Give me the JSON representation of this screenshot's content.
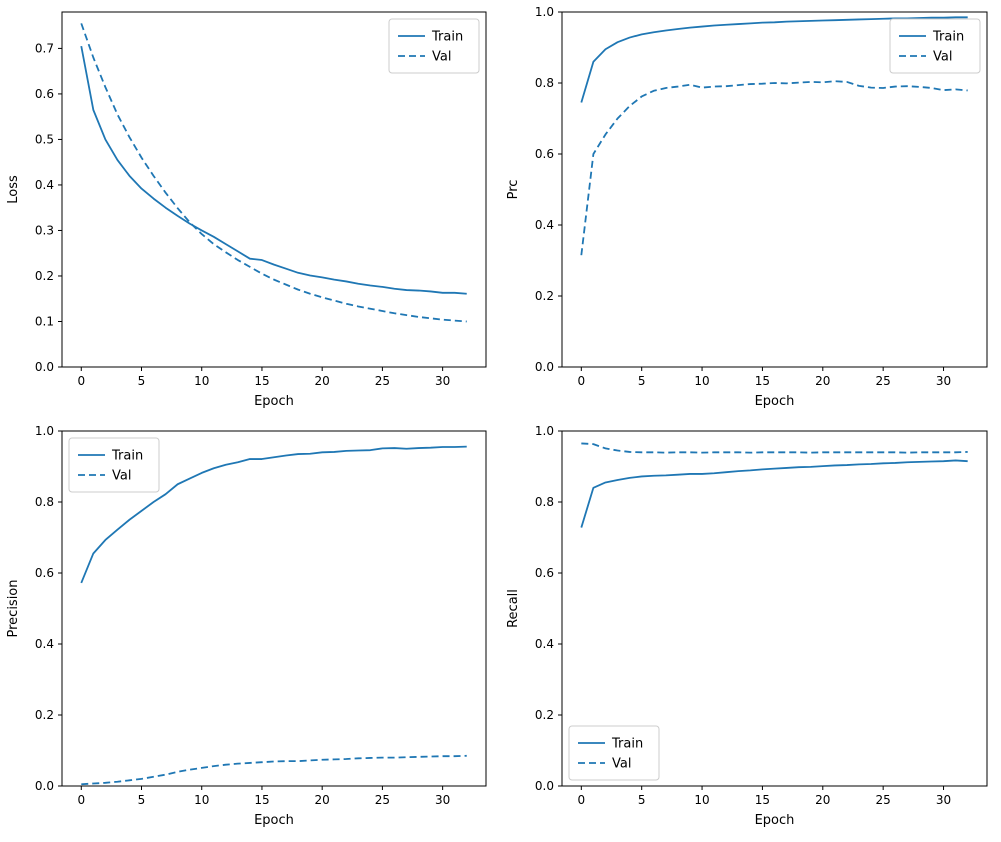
{
  "figure": {
    "background": "#ffffff",
    "line_color": "#1f77b4",
    "spine_color": "#000000",
    "legend_border_color": "#cccccc",
    "legend_labels": [
      "Train",
      "Val"
    ]
  },
  "epochs": [
    0,
    1,
    2,
    3,
    4,
    5,
    6,
    7,
    8,
    9,
    10,
    11,
    12,
    13,
    14,
    15,
    16,
    17,
    18,
    19,
    20,
    21,
    22,
    23,
    24,
    25,
    26,
    27,
    28,
    29,
    30,
    31,
    32
  ],
  "chart_data": [
    {
      "type": "line",
      "title": "",
      "xlabel": "Epoch",
      "ylabel": "Loss",
      "xlim": [
        -1.6,
        33.6
      ],
      "ylim": [
        0.0,
        0.78
      ],
      "xticks": [
        0,
        5,
        10,
        15,
        20,
        25,
        30
      ],
      "yticks": [
        0.0,
        0.1,
        0.2,
        0.3,
        0.4,
        0.5,
        0.6,
        0.7
      ],
      "grid": false,
      "legend_position": "top-right",
      "series": [
        {
          "name": "Train",
          "style": "solid",
          "values": [
            0.705,
            0.565,
            0.5,
            0.455,
            0.42,
            0.392,
            0.37,
            0.35,
            0.332,
            0.315,
            0.3,
            0.286,
            0.27,
            0.254,
            0.238,
            0.235,
            0.225,
            0.216,
            0.207,
            0.201,
            0.197,
            0.192,
            0.188,
            0.183,
            0.179,
            0.176,
            0.172,
            0.169,
            0.168,
            0.166,
            0.163,
            0.163,
            0.161
          ]
        },
        {
          "name": "Val",
          "style": "dashed",
          "values": [
            0.755,
            0.68,
            0.615,
            0.555,
            0.505,
            0.46,
            0.42,
            0.383,
            0.349,
            0.318,
            0.292,
            0.27,
            0.252,
            0.235,
            0.22,
            0.205,
            0.192,
            0.181,
            0.17,
            0.161,
            0.153,
            0.146,
            0.139,
            0.133,
            0.128,
            0.123,
            0.118,
            0.114,
            0.11,
            0.107,
            0.104,
            0.102,
            0.1
          ]
        }
      ]
    },
    {
      "type": "line",
      "title": "",
      "xlabel": "Epoch",
      "ylabel": "Prc",
      "xlim": [
        -1.6,
        33.6
      ],
      "ylim": [
        0.0,
        1.0
      ],
      "xticks": [
        0,
        5,
        10,
        15,
        20,
        25,
        30
      ],
      "yticks": [
        0.0,
        0.2,
        0.4,
        0.6,
        0.8,
        1.0
      ],
      "grid": false,
      "legend_position": "top-right",
      "series": [
        {
          "name": "Train",
          "style": "solid",
          "values": [
            0.745,
            0.86,
            0.895,
            0.915,
            0.928,
            0.937,
            0.943,
            0.948,
            0.952,
            0.956,
            0.959,
            0.962,
            0.964,
            0.966,
            0.968,
            0.97,
            0.971,
            0.973,
            0.974,
            0.975,
            0.976,
            0.977,
            0.978,
            0.979,
            0.98,
            0.981,
            0.982,
            0.982,
            0.983,
            0.984,
            0.984,
            0.985,
            0.985
          ]
        },
        {
          "name": "Val",
          "style": "dashed",
          "values": [
            0.315,
            0.6,
            0.655,
            0.7,
            0.735,
            0.762,
            0.778,
            0.786,
            0.79,
            0.795,
            0.787,
            0.79,
            0.791,
            0.794,
            0.797,
            0.798,
            0.8,
            0.799,
            0.801,
            0.803,
            0.802,
            0.805,
            0.803,
            0.792,
            0.787,
            0.786,
            0.79,
            0.791,
            0.789,
            0.786,
            0.78,
            0.782,
            0.779
          ]
        }
      ]
    },
    {
      "type": "line",
      "title": "",
      "xlabel": "Epoch",
      "ylabel": "Precision",
      "xlim": [
        -1.6,
        33.6
      ],
      "ylim": [
        0.0,
        1.0
      ],
      "xticks": [
        0,
        5,
        10,
        15,
        20,
        25,
        30
      ],
      "yticks": [
        0.0,
        0.2,
        0.4,
        0.6,
        0.8,
        1.0
      ],
      "grid": false,
      "legend_position": "top-left",
      "series": [
        {
          "name": "Train",
          "style": "solid",
          "values": [
            0.572,
            0.655,
            0.693,
            0.722,
            0.75,
            0.775,
            0.8,
            0.822,
            0.85,
            0.866,
            0.882,
            0.895,
            0.905,
            0.912,
            0.921,
            0.921,
            0.926,
            0.931,
            0.935,
            0.936,
            0.94,
            0.941,
            0.944,
            0.945,
            0.946,
            0.951,
            0.952,
            0.95,
            0.952,
            0.953,
            0.955,
            0.955,
            0.956
          ]
        },
        {
          "name": "Val",
          "style": "dashed",
          "values": [
            0.005,
            0.007,
            0.009,
            0.012,
            0.016,
            0.02,
            0.026,
            0.032,
            0.04,
            0.046,
            0.051,
            0.056,
            0.06,
            0.063,
            0.065,
            0.067,
            0.069,
            0.07,
            0.07,
            0.072,
            0.074,
            0.075,
            0.076,
            0.078,
            0.079,
            0.08,
            0.08,
            0.081,
            0.082,
            0.083,
            0.084,
            0.084,
            0.085
          ]
        }
      ]
    },
    {
      "type": "line",
      "title": "",
      "xlabel": "Epoch",
      "ylabel": "Recall",
      "xlim": [
        -1.6,
        33.6
      ],
      "ylim": [
        0.0,
        1.0
      ],
      "xticks": [
        0,
        5,
        10,
        15,
        20,
        25,
        30
      ],
      "yticks": [
        0.0,
        0.2,
        0.4,
        0.6,
        0.8,
        1.0
      ],
      "grid": false,
      "legend_position": "bottom-left",
      "series": [
        {
          "name": "Train",
          "style": "solid",
          "values": [
            0.728,
            0.84,
            0.855,
            0.862,
            0.868,
            0.872,
            0.874,
            0.875,
            0.877,
            0.879,
            0.879,
            0.881,
            0.884,
            0.887,
            0.889,
            0.892,
            0.894,
            0.896,
            0.898,
            0.899,
            0.901,
            0.903,
            0.904,
            0.906,
            0.907,
            0.909,
            0.91,
            0.912,
            0.913,
            0.914,
            0.915,
            0.917,
            0.915
          ]
        },
        {
          "name": "Val",
          "style": "dashed",
          "values": [
            0.965,
            0.963,
            0.951,
            0.945,
            0.941,
            0.94,
            0.94,
            0.939,
            0.94,
            0.94,
            0.939,
            0.94,
            0.94,
            0.94,
            0.939,
            0.94,
            0.94,
            0.94,
            0.94,
            0.939,
            0.94,
            0.94,
            0.94,
            0.94,
            0.94,
            0.94,
            0.94,
            0.939,
            0.94,
            0.94,
            0.94,
            0.94,
            0.941
          ]
        }
      ]
    }
  ]
}
